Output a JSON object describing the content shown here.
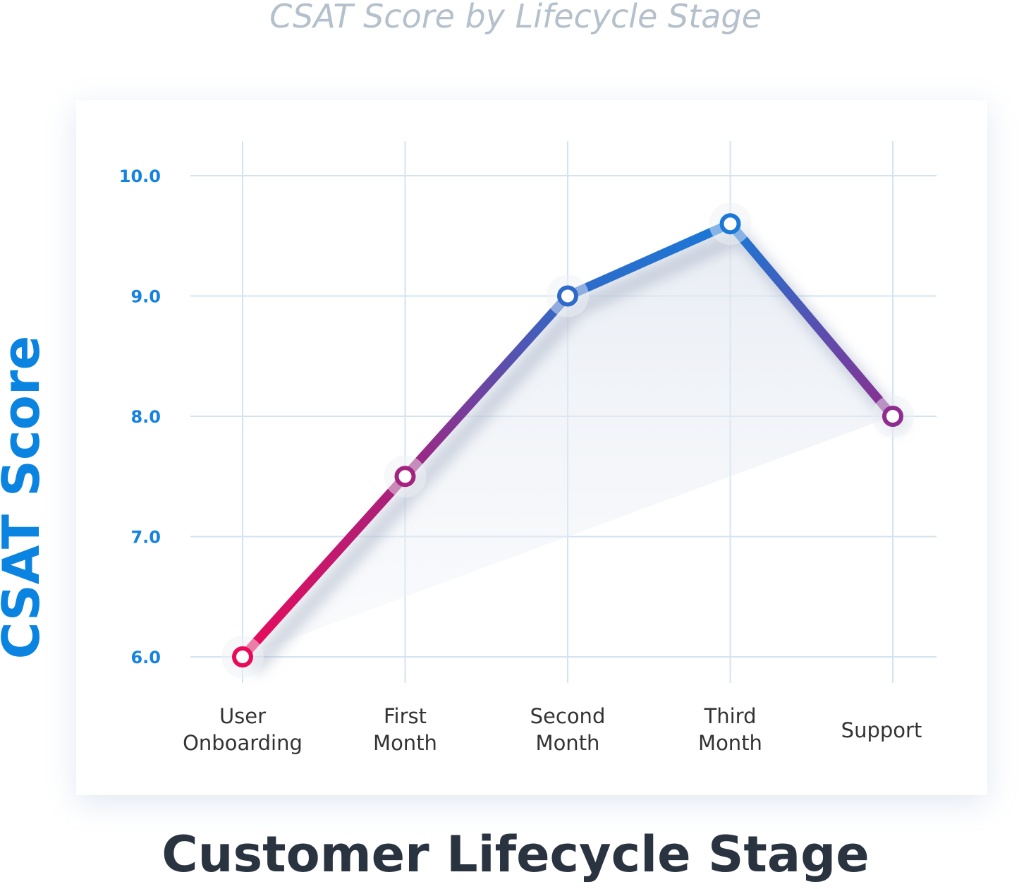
{
  "chart_data": {
    "type": "line",
    "title": "CSAT Score by Lifecycle Stage",
    "xlabel": "Customer Lifecycle Stage",
    "ylabel": "CSAT Score",
    "categories": [
      [
        "User",
        "Onboarding"
      ],
      [
        "First",
        "Month"
      ],
      [
        "Second",
        "Month"
      ],
      [
        "Third",
        "Month"
      ],
      [
        "Support"
      ]
    ],
    "values": [
      6.0,
      7.5,
      9.0,
      9.6,
      8.0
    ],
    "ylim": [
      6.0,
      10.0
    ],
    "yticks": [
      "6.0",
      "7.0",
      "8.0",
      "9.0",
      "10.0"
    ],
    "grid": true,
    "point_colors": [
      "#ea0a5a",
      "#a3237e",
      "#2f6ac9",
      "#1a78d6",
      "#8e2d8f"
    ]
  }
}
